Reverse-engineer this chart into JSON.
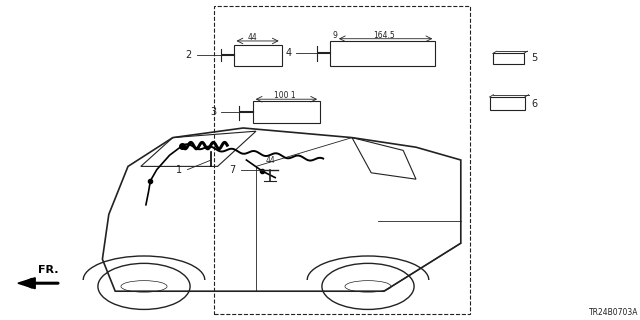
{
  "bg_color": "#ffffff",
  "line_color": "#222222",
  "diagram_label": "TR24B0703A"
}
